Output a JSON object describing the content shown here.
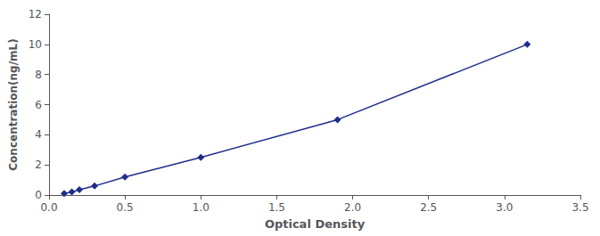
{
  "chart_data": {
    "type": "line",
    "xlabel": "Optical Density",
    "ylabel": "Concentration(ng/mL)",
    "x": [
      0.1,
      0.15,
      0.2,
      0.3,
      0.5,
      1.0,
      1.9,
      3.15
    ],
    "values": [
      0.1,
      0.2,
      0.35,
      0.6,
      1.2,
      2.5,
      5.0,
      10.0
    ],
    "color": "#1f2d8a",
    "marker": "diamond",
    "xlim": [
      0,
      3.5
    ],
    "ylim": [
      0,
      12
    ],
    "xticks": [
      {
        "value": 0,
        "label": "0.0"
      },
      0.5,
      {
        "value": 1,
        "label": "1.0"
      },
      1.5,
      {
        "value": 2,
        "label": "2.0"
      },
      2.5,
      {
        "value": 3,
        "label": "3.0"
      },
      3.5
    ],
    "yticks": [
      0,
      2,
      4,
      6,
      8,
      10,
      12
    ],
    "grid": false
  }
}
